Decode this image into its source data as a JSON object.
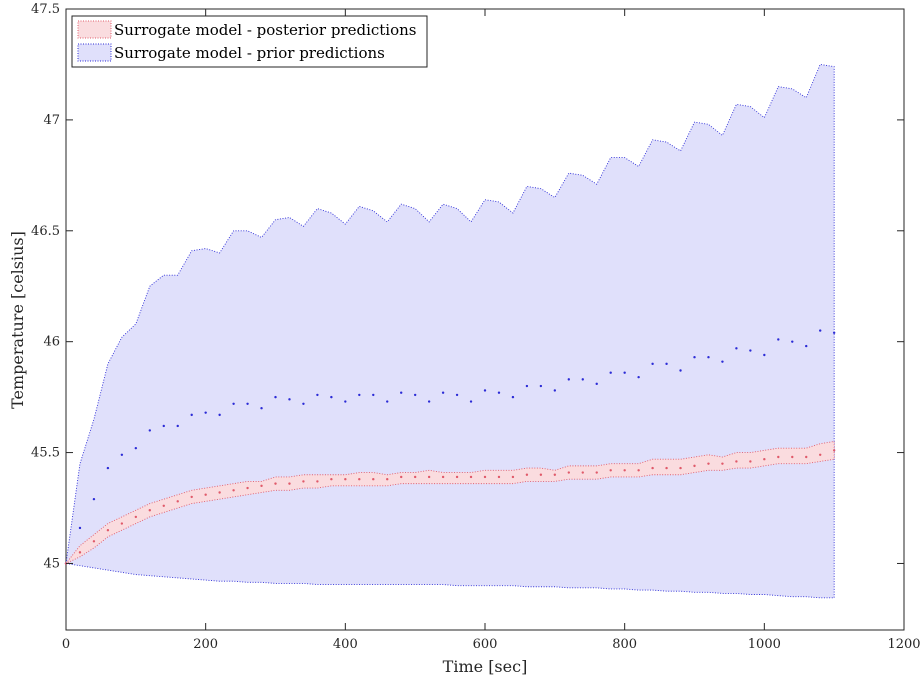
{
  "chart_data": {
    "type": "area",
    "title": "",
    "xlabel": "Time [sec]",
    "ylabel": "Temperature [celsius]",
    "xlim": [
      0,
      1200
    ],
    "ylim": [
      44.7,
      47.5
    ],
    "xticks": [
      "0",
      "200",
      "400",
      "600",
      "800",
      "1000",
      "1200"
    ],
    "yticks": [
      "45",
      "45.5",
      "46",
      "46.5",
      "47",
      "47.5"
    ],
    "legend_position": "top-left",
    "grid": false,
    "x": [
      0,
      20,
      40,
      60,
      80,
      100,
      120,
      140,
      160,
      180,
      200,
      220,
      240,
      260,
      280,
      300,
      320,
      340,
      360,
      380,
      400,
      420,
      440,
      460,
      480,
      500,
      520,
      540,
      560,
      580,
      600,
      620,
      640,
      660,
      680,
      700,
      720,
      740,
      760,
      780,
      800,
      820,
      840,
      860,
      880,
      900,
      920,
      940,
      960,
      980,
      1000,
      1020,
      1040,
      1060,
      1080,
      1100
    ],
    "series": [
      {
        "name": "Surrogate model - posterior predictions",
        "color": "#e05a6a",
        "fill": "#fadcdf",
        "mean": [
          45.0,
          45.05,
          45.1,
          45.15,
          45.18,
          45.21,
          45.24,
          45.26,
          45.28,
          45.3,
          45.31,
          45.32,
          45.33,
          45.34,
          45.35,
          45.36,
          45.36,
          45.37,
          45.37,
          45.38,
          45.38,
          45.38,
          45.38,
          45.38,
          45.39,
          45.39,
          45.39,
          45.39,
          45.39,
          45.39,
          45.39,
          45.39,
          45.39,
          45.4,
          45.4,
          45.4,
          45.41,
          45.41,
          45.41,
          45.42,
          45.42,
          45.42,
          45.43,
          45.43,
          45.43,
          45.44,
          45.45,
          45.45,
          45.46,
          45.46,
          45.47,
          45.48,
          45.48,
          45.48,
          45.49,
          45.51
        ],
        "upper": [
          45.0,
          45.08,
          45.13,
          45.18,
          45.21,
          45.24,
          45.27,
          45.29,
          45.31,
          45.33,
          45.34,
          45.35,
          45.36,
          45.37,
          45.37,
          45.39,
          45.39,
          45.4,
          45.4,
          45.4,
          45.4,
          45.41,
          45.41,
          45.4,
          45.41,
          45.41,
          45.42,
          45.41,
          45.41,
          45.41,
          45.42,
          45.42,
          45.42,
          45.43,
          45.43,
          45.42,
          45.44,
          45.44,
          45.44,
          45.45,
          45.45,
          45.45,
          45.47,
          45.47,
          45.47,
          45.48,
          45.49,
          45.48,
          45.5,
          45.5,
          45.51,
          45.52,
          45.52,
          45.52,
          45.54,
          45.55
        ],
        "lower": [
          45.0,
          45.03,
          45.07,
          45.12,
          45.15,
          45.18,
          45.21,
          45.23,
          45.25,
          45.27,
          45.28,
          45.29,
          45.3,
          45.31,
          45.32,
          45.33,
          45.33,
          45.34,
          45.34,
          45.35,
          45.35,
          45.35,
          45.35,
          45.35,
          45.36,
          45.36,
          45.36,
          45.36,
          45.36,
          45.36,
          45.36,
          45.36,
          45.36,
          45.37,
          45.37,
          45.37,
          45.38,
          45.38,
          45.38,
          45.39,
          45.39,
          45.39,
          45.4,
          45.4,
          45.4,
          45.41,
          45.42,
          45.42,
          45.43,
          45.43,
          45.44,
          45.45,
          45.45,
          45.45,
          45.46,
          45.47
        ]
      },
      {
        "name": "Surrogate model - prior predictions",
        "color": "#2b2bd6",
        "fill": "#e0e0fb",
        "mean": [
          45.0,
          45.16,
          45.29,
          45.43,
          45.49,
          45.52,
          45.6,
          45.62,
          45.62,
          45.67,
          45.68,
          45.67,
          45.72,
          45.72,
          45.7,
          45.75,
          45.74,
          45.72,
          45.76,
          45.75,
          45.73,
          45.76,
          45.76,
          45.73,
          45.77,
          45.76,
          45.73,
          45.77,
          45.76,
          45.73,
          45.78,
          45.77,
          45.75,
          45.8,
          45.8,
          45.78,
          45.83,
          45.83,
          45.81,
          45.86,
          45.86,
          45.84,
          45.9,
          45.9,
          45.87,
          45.93,
          45.93,
          45.91,
          45.97,
          45.96,
          45.94,
          46.01,
          46.0,
          45.98,
          46.05,
          46.04
        ],
        "upper": [
          45.0,
          45.45,
          45.65,
          45.9,
          46.02,
          46.08,
          46.25,
          46.3,
          46.3,
          46.41,
          46.42,
          46.4,
          46.5,
          46.5,
          46.47,
          46.55,
          46.56,
          46.52,
          46.6,
          46.58,
          46.53,
          46.61,
          46.59,
          46.54,
          46.62,
          46.6,
          46.54,
          46.62,
          46.6,
          46.54,
          46.64,
          46.63,
          46.58,
          46.7,
          46.69,
          46.65,
          46.76,
          46.75,
          46.71,
          46.83,
          46.83,
          46.79,
          46.91,
          46.9,
          46.86,
          46.99,
          46.98,
          46.93,
          47.07,
          47.06,
          47.01,
          47.15,
          47.14,
          47.1,
          47.25,
          47.24
        ],
        "lower": [
          45.0,
          44.99,
          44.98,
          44.97,
          44.96,
          44.95,
          44.945,
          44.94,
          44.935,
          44.93,
          44.925,
          44.92,
          44.92,
          44.915,
          44.915,
          44.91,
          44.91,
          44.91,
          44.905,
          44.905,
          44.905,
          44.905,
          44.905,
          44.905,
          44.905,
          44.905,
          44.905,
          44.905,
          44.9,
          44.9,
          44.9,
          44.9,
          44.9,
          44.895,
          44.895,
          44.895,
          44.89,
          44.89,
          44.89,
          44.885,
          44.885,
          44.88,
          44.88,
          44.875,
          44.875,
          44.87,
          44.87,
          44.865,
          44.865,
          44.86,
          44.86,
          44.855,
          44.85,
          44.85,
          44.845,
          44.845
        ]
      }
    ]
  }
}
